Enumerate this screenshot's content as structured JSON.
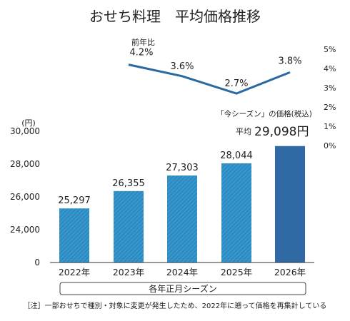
{
  "chart_data": {
    "type": "bar",
    "title": "おせち料理　平均価格推移",
    "categories": [
      "2022年",
      "2023年",
      "2024年",
      "2025年",
      "2026年"
    ],
    "values": [
      25297,
      26355,
      27303,
      28044,
      29098
    ],
    "value_labels": [
      "25,297",
      "26,355",
      "27,303",
      "28,044",
      ""
    ],
    "ylabel": "(円)",
    "y_ticks": [
      "0",
      "24,000",
      "26,000",
      "28,000",
      "30,000"
    ],
    "ylim": [
      23000,
      30500
    ],
    "axis_break": true,
    "xlabel": "各年正月シーズン",
    "highlight": {
      "note": "「今シーズン」の価格(税込)",
      "prefix": "平均",
      "value_text": "29,098円"
    },
    "yoy": {
      "type": "line",
      "series_label": "前年比",
      "values": [
        4.2,
        3.6,
        2.7,
        3.8
      ],
      "value_labels": [
        "4.2%",
        "3.6%",
        "2.7%",
        "3.8%"
      ],
      "ylim": [
        0,
        5
      ],
      "y_ticks": [
        "0%",
        "1%",
        "2%",
        "3%",
        "4%",
        "5%"
      ]
    },
    "colors": {
      "bar": "#2b8cc4",
      "bar_highlight": "#2f6aa5",
      "line": "#2b6aa0",
      "text": "#222222"
    }
  },
  "footnote": "［注］一部おせちで種別・対象に変更が発生したため、2022年に遡って価格を再集計している"
}
